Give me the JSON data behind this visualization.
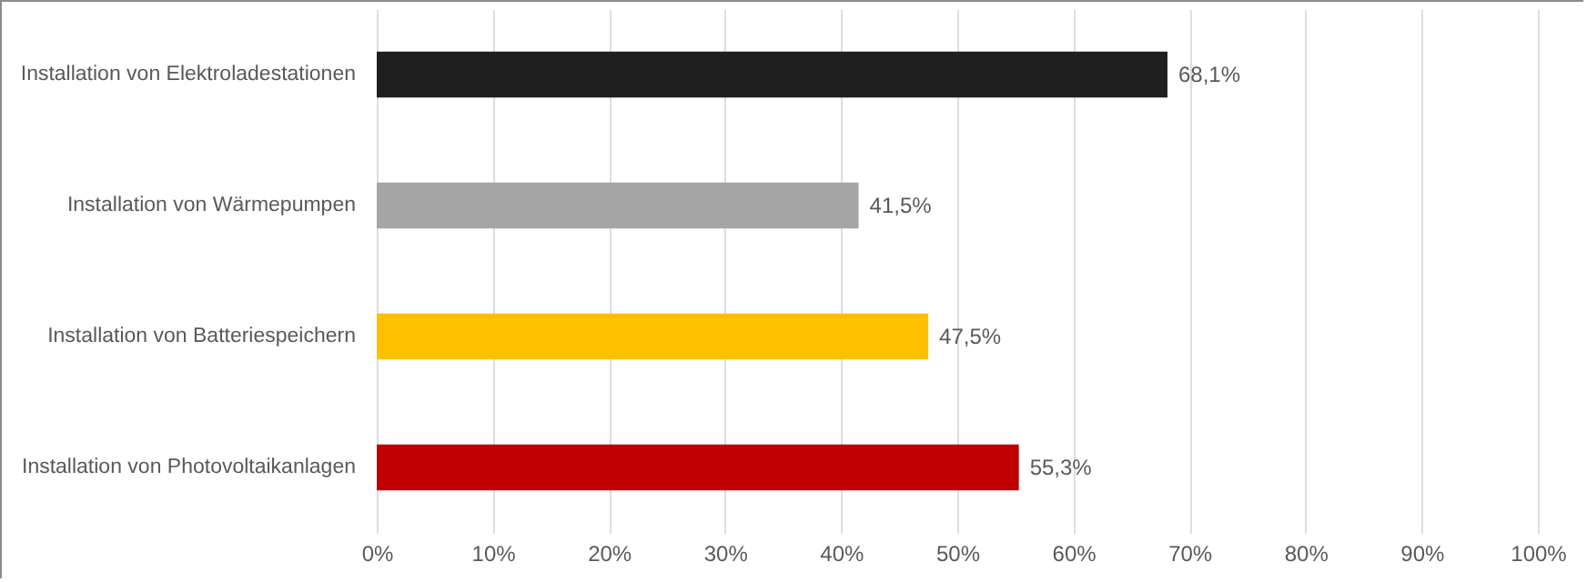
{
  "chart_data": {
    "type": "bar",
    "orientation": "horizontal",
    "categories": [
      "Installation von Elektroladestationen",
      "Installation von Wärmepumpen",
      "Installation von Batteriespeichern",
      "Installation von Photovoltaikanlagen"
    ],
    "values": [
      68.1,
      41.5,
      47.5,
      55.3
    ],
    "colors": [
      "#1f1f1f",
      "#a6a6a6",
      "#ffc000",
      "#c00000"
    ],
    "value_labels": [
      "68,1%",
      "41,5%",
      "47,5%",
      "55,3%"
    ],
    "xlim": [
      0,
      100
    ],
    "xticks": [
      {
        "value": 0,
        "label": "0%"
      },
      {
        "value": 10,
        "label": "10%"
      },
      {
        "value": 20,
        "label": "20%"
      },
      {
        "value": 30,
        "label": "30%"
      },
      {
        "value": 40,
        "label": "40%"
      },
      {
        "value": 50,
        "label": "50%"
      },
      {
        "value": 60,
        "label": "60%"
      },
      {
        "value": 70,
        "label": "70%"
      },
      {
        "value": 80,
        "label": "80%"
      },
      {
        "value": 90,
        "label": "90%"
      },
      {
        "value": 100,
        "label": "100%"
      }
    ],
    "grid": "x"
  }
}
